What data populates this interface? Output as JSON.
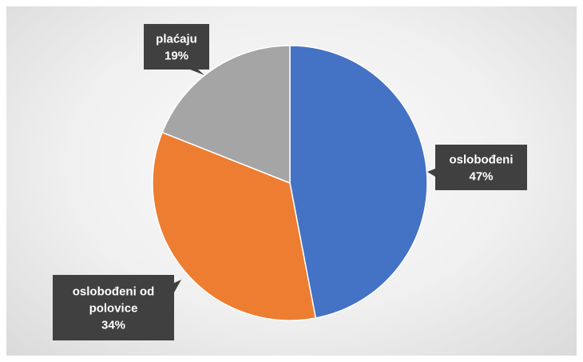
{
  "chart_data": {
    "type": "pie",
    "slices": [
      {
        "name": "oslobođeni",
        "value": 47,
        "value_label": "47%",
        "color": "#4472c4"
      },
      {
        "name": "oslobođeni od polovice",
        "value": 34,
        "value_label": "34%",
        "color": "#ed7d31"
      },
      {
        "name": "plaćaju",
        "value": 19,
        "value_label": "19%",
        "color": "#a5a5a5"
      }
    ],
    "start_angle": "12 o'clock, clockwise",
    "legend": "none",
    "data_labels": "dark callouts with category name and percentage"
  }
}
